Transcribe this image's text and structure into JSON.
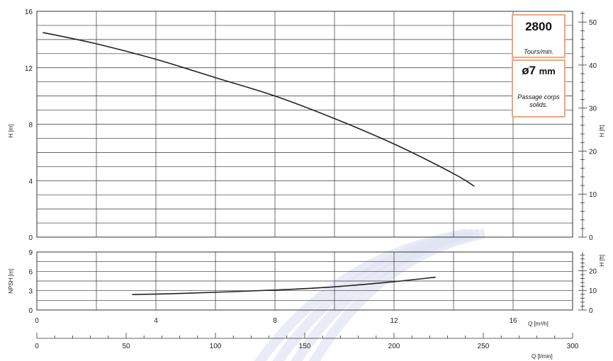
{
  "chart_data": [
    {
      "type": "line",
      "ylabel": "H [m]",
      "ylabel_right": "H [ft]",
      "xlim": [
        0,
        18
      ],
      "ylim": [
        0,
        16
      ],
      "y_ticks": [
        0,
        4,
        8,
        12,
        16
      ],
      "y_right_ticks": [
        0,
        10,
        20,
        30,
        40,
        50
      ],
      "grid": true,
      "series": [
        {
          "x": [
            0.2,
            2,
            4,
            6,
            8,
            10,
            12,
            14,
            14.7
          ],
          "y": [
            14.5,
            13.7,
            12.6,
            11.3,
            10.0,
            8.4,
            6.6,
            4.5,
            3.6
          ]
        }
      ]
    },
    {
      "type": "line",
      "ylabel": "NPSH [m]",
      "ylabel_right": "H [ft]",
      "xlabel": "Q [m³/h]",
      "xlabel_secondary": "Q [l/min]",
      "xlim": [
        0,
        18
      ],
      "ylim": [
        0,
        9
      ],
      "x_ticks": [
        0,
        4,
        8,
        12,
        16
      ],
      "x_secondary_ticks": [
        0,
        50,
        100,
        150,
        200,
        250,
        300
      ],
      "y_ticks": [
        0,
        3,
        6,
        9
      ],
      "y_right_ticks": [
        0,
        10,
        20
      ],
      "grid": true,
      "series": [
        {
          "x": [
            3.2,
            5,
            8,
            10,
            12,
            13.4
          ],
          "y": [
            2.4,
            2.6,
            3.1,
            3.6,
            4.4,
            5.1
          ]
        }
      ]
    }
  ],
  "info": {
    "speed_value": "2800",
    "speed_unit": "Tours/min.",
    "passage_value": "ø7",
    "passage_unit": "mm",
    "passage_label": "Passage corps solids."
  },
  "colors": {
    "curve": "#222222",
    "grid": "#333333",
    "box_border": "#f0a878",
    "watermark": "#dfe4f2"
  }
}
